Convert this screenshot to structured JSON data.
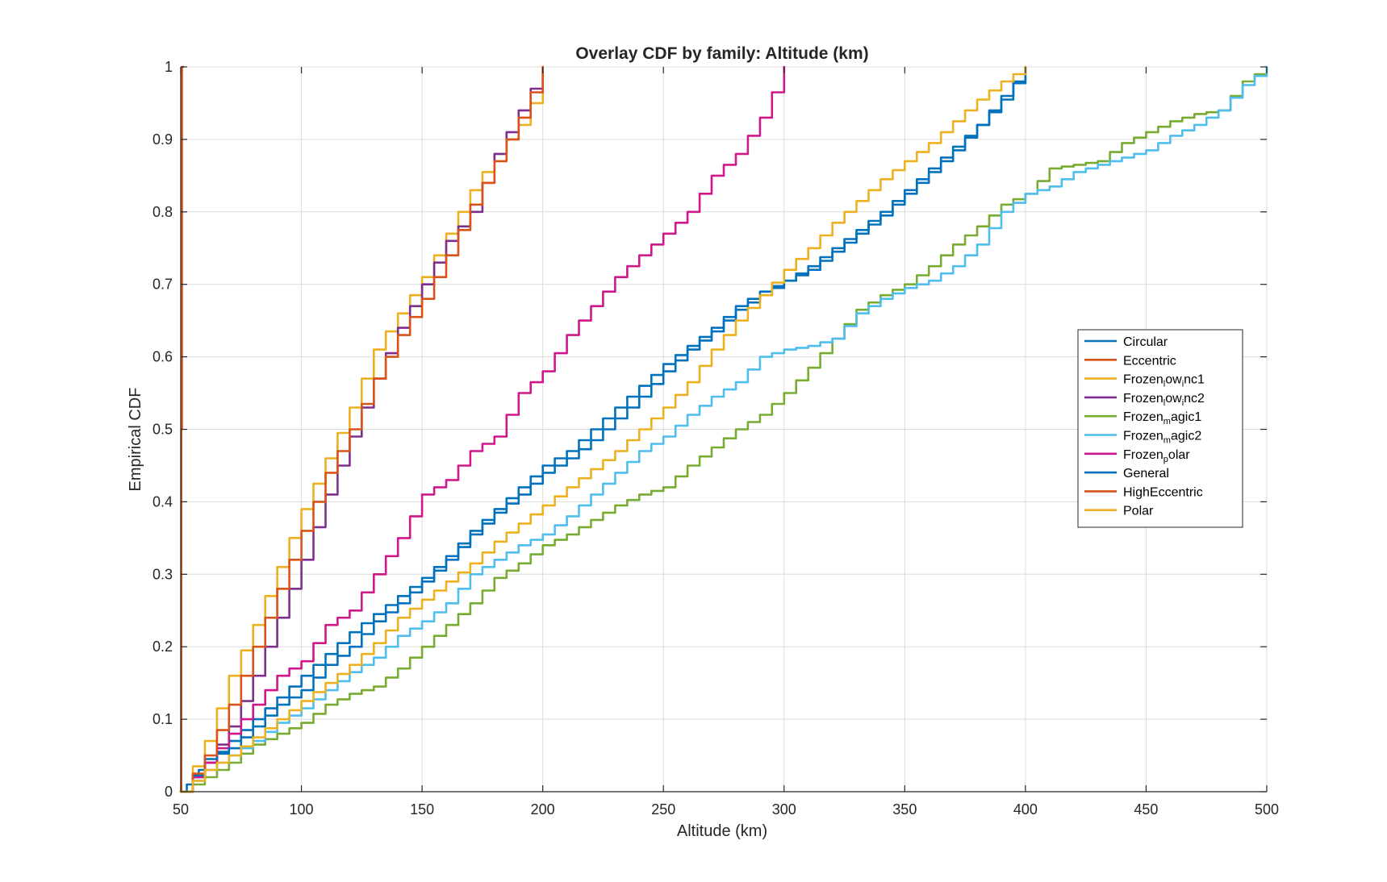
{
  "chart_data": {
    "type": "line",
    "title": "Overlay CDF by family: Altitude (km)",
    "xlabel": "Altitude (km)",
    "ylabel": "Empirical CDF",
    "xlim": [
      50,
      500
    ],
    "ylim": [
      0,
      1
    ],
    "xticks": [
      "50",
      "100",
      "150",
      "200",
      "250",
      "300",
      "350",
      "400",
      "450",
      "500"
    ],
    "yticks": [
      "0",
      "0.1",
      "0.2",
      "0.3",
      "0.4",
      "0.5",
      "0.6",
      "0.7",
      "0.8",
      "0.9",
      "1"
    ],
    "grid": true,
    "legend_position": "right",
    "series": [
      {
        "name": "Circular",
        "color": "#0072BD",
        "x": [
          50,
          55,
          60,
          70,
          80,
          90,
          100,
          110,
          120,
          130,
          140,
          150,
          160,
          170,
          180,
          190,
          200,
          210,
          220,
          230,
          240,
          250,
          260,
          270,
          280,
          290,
          300,
          310,
          320,
          330,
          340,
          350,
          360,
          370,
          380,
          390,
          400
        ],
        "y": [
          0,
          0.02,
          0.04,
          0.07,
          0.1,
          0.13,
          0.16,
          0.19,
          0.22,
          0.245,
          0.27,
          0.295,
          0.325,
          0.36,
          0.39,
          0.42,
          0.45,
          0.47,
          0.5,
          0.53,
          0.56,
          0.59,
          0.615,
          0.64,
          0.67,
          0.69,
          0.705,
          0.725,
          0.75,
          0.775,
          0.8,
          0.83,
          0.86,
          0.89,
          0.92,
          0.96,
          1.0
        ]
      },
      {
        "name": "Eccentric",
        "color": "#D95319",
        "x": [
          50,
          50.5,
          51
        ],
        "y": [
          0,
          1.0,
          1.0
        ]
      },
      {
        "name": "Frozen_low_inc1",
        "display_name": "Frozenlowinc1",
        "color": "#EDB120",
        "x": [
          50,
          60,
          70,
          80,
          90,
          100,
          110,
          120,
          130,
          140,
          150,
          160,
          170,
          180,
          190,
          200
        ],
        "y": [
          0,
          0.07,
          0.16,
          0.23,
          0.31,
          0.39,
          0.46,
          0.53,
          0.61,
          0.66,
          0.71,
          0.77,
          0.83,
          0.88,
          0.92,
          0.98
        ]
      },
      {
        "name": "Frozen_low_inc2",
        "display_name": "Frozenlowinc2",
        "color": "#7E2F8E",
        "x": [
          50,
          60,
          70,
          80,
          90,
          100,
          110,
          120,
          130,
          140,
          150,
          160,
          170,
          180,
          190,
          200
        ],
        "y": [
          0,
          0.04,
          0.09,
          0.16,
          0.24,
          0.32,
          0.41,
          0.49,
          0.57,
          0.64,
          0.7,
          0.76,
          0.8,
          0.88,
          0.94,
          1.0
        ]
      },
      {
        "name": "Frozen_magic1",
        "display_name": "Frozenmagic1",
        "color": "#77AC30",
        "x": [
          50,
          60,
          70,
          80,
          90,
          100,
          110,
          120,
          130,
          140,
          150,
          160,
          170,
          180,
          190,
          200,
          210,
          220,
          230,
          240,
          250,
          260,
          270,
          280,
          290,
          300,
          310,
          320,
          330,
          340,
          350,
          360,
          370,
          380,
          390,
          400,
          410,
          420,
          430,
          440,
          450,
          460,
          470,
          480,
          490,
          500
        ],
        "y": [
          0,
          0.02,
          0.04,
          0.065,
          0.08,
          0.095,
          0.12,
          0.135,
          0.145,
          0.17,
          0.2,
          0.23,
          0.26,
          0.295,
          0.315,
          0.34,
          0.355,
          0.375,
          0.395,
          0.41,
          0.42,
          0.45,
          0.475,
          0.5,
          0.52,
          0.55,
          0.585,
          0.625,
          0.665,
          0.685,
          0.7,
          0.725,
          0.755,
          0.78,
          0.81,
          0.825,
          0.86,
          0.865,
          0.87,
          0.895,
          0.91,
          0.925,
          0.935,
          0.94,
          0.98,
          1.0
        ]
      },
      {
        "name": "Frozen_magic2",
        "display_name": "Frozenmagic2",
        "color": "#4DBEEE",
        "x": [
          50,
          60,
          70,
          80,
          90,
          100,
          110,
          120,
          130,
          140,
          150,
          160,
          170,
          180,
          190,
          200,
          210,
          220,
          230,
          240,
          250,
          260,
          270,
          280,
          290,
          300,
          310,
          320,
          330,
          340,
          350,
          360,
          370,
          380,
          390,
          400,
          410,
          420,
          430,
          440,
          450,
          460,
          470,
          480,
          490,
          500
        ],
        "y": [
          0,
          0.03,
          0.05,
          0.07,
          0.095,
          0.115,
          0.14,
          0.165,
          0.185,
          0.215,
          0.235,
          0.26,
          0.3,
          0.32,
          0.34,
          0.355,
          0.38,
          0.41,
          0.44,
          0.47,
          0.49,
          0.52,
          0.545,
          0.565,
          0.6,
          0.61,
          0.615,
          0.625,
          0.66,
          0.68,
          0.695,
          0.705,
          0.725,
          0.755,
          0.8,
          0.825,
          0.835,
          0.855,
          0.865,
          0.875,
          0.885,
          0.905,
          0.92,
          0.94,
          0.975,
          1.0
        ]
      },
      {
        "name": "Frozen_polar",
        "display_name": "Frozenpolar",
        "color": "#D0178B",
        "x": [
          50,
          60,
          70,
          80,
          90,
          100,
          110,
          120,
          130,
          140,
          150,
          160,
          170,
          180,
          190,
          200,
          210,
          220,
          230,
          240,
          250,
          260,
          270,
          280,
          290,
          300
        ],
        "y": [
          0,
          0.04,
          0.08,
          0.12,
          0.16,
          0.18,
          0.23,
          0.25,
          0.3,
          0.35,
          0.41,
          0.43,
          0.47,
          0.49,
          0.55,
          0.58,
          0.63,
          0.67,
          0.71,
          0.74,
          0.77,
          0.8,
          0.85,
          0.88,
          0.93,
          1.0
        ]
      },
      {
        "name": "General",
        "color": "#0072BD",
        "x": [
          50,
          60,
          70,
          80,
          90,
          100,
          110,
          120,
          130,
          140,
          150,
          160,
          170,
          180,
          190,
          200,
          210,
          220,
          230,
          240,
          250,
          260,
          270,
          280,
          290,
          300,
          310,
          320,
          330,
          340,
          350,
          360,
          370,
          380,
          390,
          400
        ],
        "y": [
          0,
          0.045,
          0.06,
          0.09,
          0.12,
          0.14,
          0.175,
          0.2,
          0.235,
          0.26,
          0.29,
          0.32,
          0.355,
          0.385,
          0.41,
          0.44,
          0.46,
          0.485,
          0.515,
          0.545,
          0.58,
          0.61,
          0.635,
          0.665,
          0.685,
          0.705,
          0.72,
          0.745,
          0.77,
          0.795,
          0.825,
          0.855,
          0.885,
          0.92,
          0.955,
          1.0
        ]
      },
      {
        "name": "HighEccentric",
        "color": "#D95319",
        "x": [
          50,
          60,
          70,
          80,
          90,
          100,
          110,
          120,
          130,
          140,
          150,
          160,
          170,
          180,
          190,
          200
        ],
        "y": [
          0,
          0.05,
          0.12,
          0.2,
          0.28,
          0.36,
          0.44,
          0.5,
          0.57,
          0.63,
          0.68,
          0.74,
          0.81,
          0.87,
          0.93,
          1.0
        ]
      },
      {
        "name": "Polar",
        "color": "#EDB120",
        "x": [
          50,
          60,
          70,
          80,
          90,
          100,
          110,
          120,
          130,
          140,
          150,
          160,
          170,
          180,
          190,
          200,
          210,
          220,
          230,
          240,
          250,
          260,
          270,
          280,
          290,
          300,
          310,
          320,
          330,
          340,
          350,
          360,
          370,
          380,
          390,
          400
        ],
        "y": [
          0,
          0.03,
          0.05,
          0.075,
          0.1,
          0.125,
          0.15,
          0.175,
          0.205,
          0.24,
          0.265,
          0.29,
          0.315,
          0.345,
          0.37,
          0.395,
          0.42,
          0.445,
          0.47,
          0.5,
          0.53,
          0.565,
          0.61,
          0.65,
          0.685,
          0.72,
          0.75,
          0.785,
          0.815,
          0.845,
          0.87,
          0.895,
          0.925,
          0.955,
          0.98,
          1.0
        ]
      }
    ]
  }
}
